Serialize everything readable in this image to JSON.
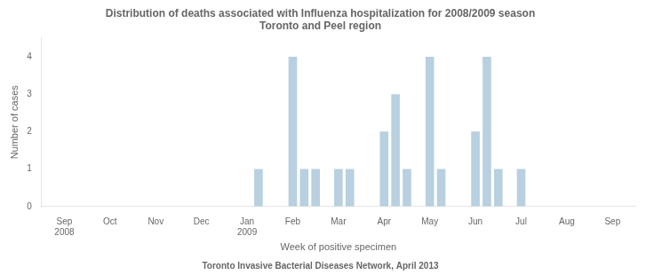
{
  "chart_data": {
    "type": "bar",
    "title": "Distribution of deaths associated with Influenza hospitalization for 2008/2009 season\nToronto and Peel region",
    "xlabel": "Week of positive specimen",
    "ylabel": "Number of cases",
    "footnote": "Toronto Invasive Bacterial Diseases Network, April 2013",
    "color": "#b8d0e0",
    "x": [
      17,
      20,
      21,
      22,
      24,
      25,
      28,
      29,
      30,
      32,
      33,
      36,
      37,
      38,
      40
    ],
    "values": [
      1,
      4,
      1,
      1,
      1,
      1,
      2,
      3,
      1,
      4,
      1,
      2,
      4,
      1,
      1
    ],
    "xlim": [
      -2,
      50
    ],
    "xticks": [
      {
        "value": 0,
        "label": "Sep\n2008"
      },
      {
        "value": 4,
        "label": "Oct"
      },
      {
        "value": 8,
        "label": "Nov"
      },
      {
        "value": 12,
        "label": "Dec"
      },
      {
        "value": 16,
        "label": "Jan\n2009"
      },
      {
        "value": 20,
        "label": "Feb"
      },
      {
        "value": 24,
        "label": "Mar"
      },
      {
        "value": 28,
        "label": "Apr"
      },
      {
        "value": 32,
        "label": "May"
      },
      {
        "value": 36,
        "label": "Jun"
      },
      {
        "value": 40,
        "label": "Jul"
      },
      {
        "value": 44,
        "label": "Aug"
      },
      {
        "value": 48,
        "label": "Sep"
      }
    ],
    "ylim": [
      0,
      4.5
    ],
    "yticks": [
      0,
      1,
      2,
      3,
      4
    ],
    "grid": false
  }
}
